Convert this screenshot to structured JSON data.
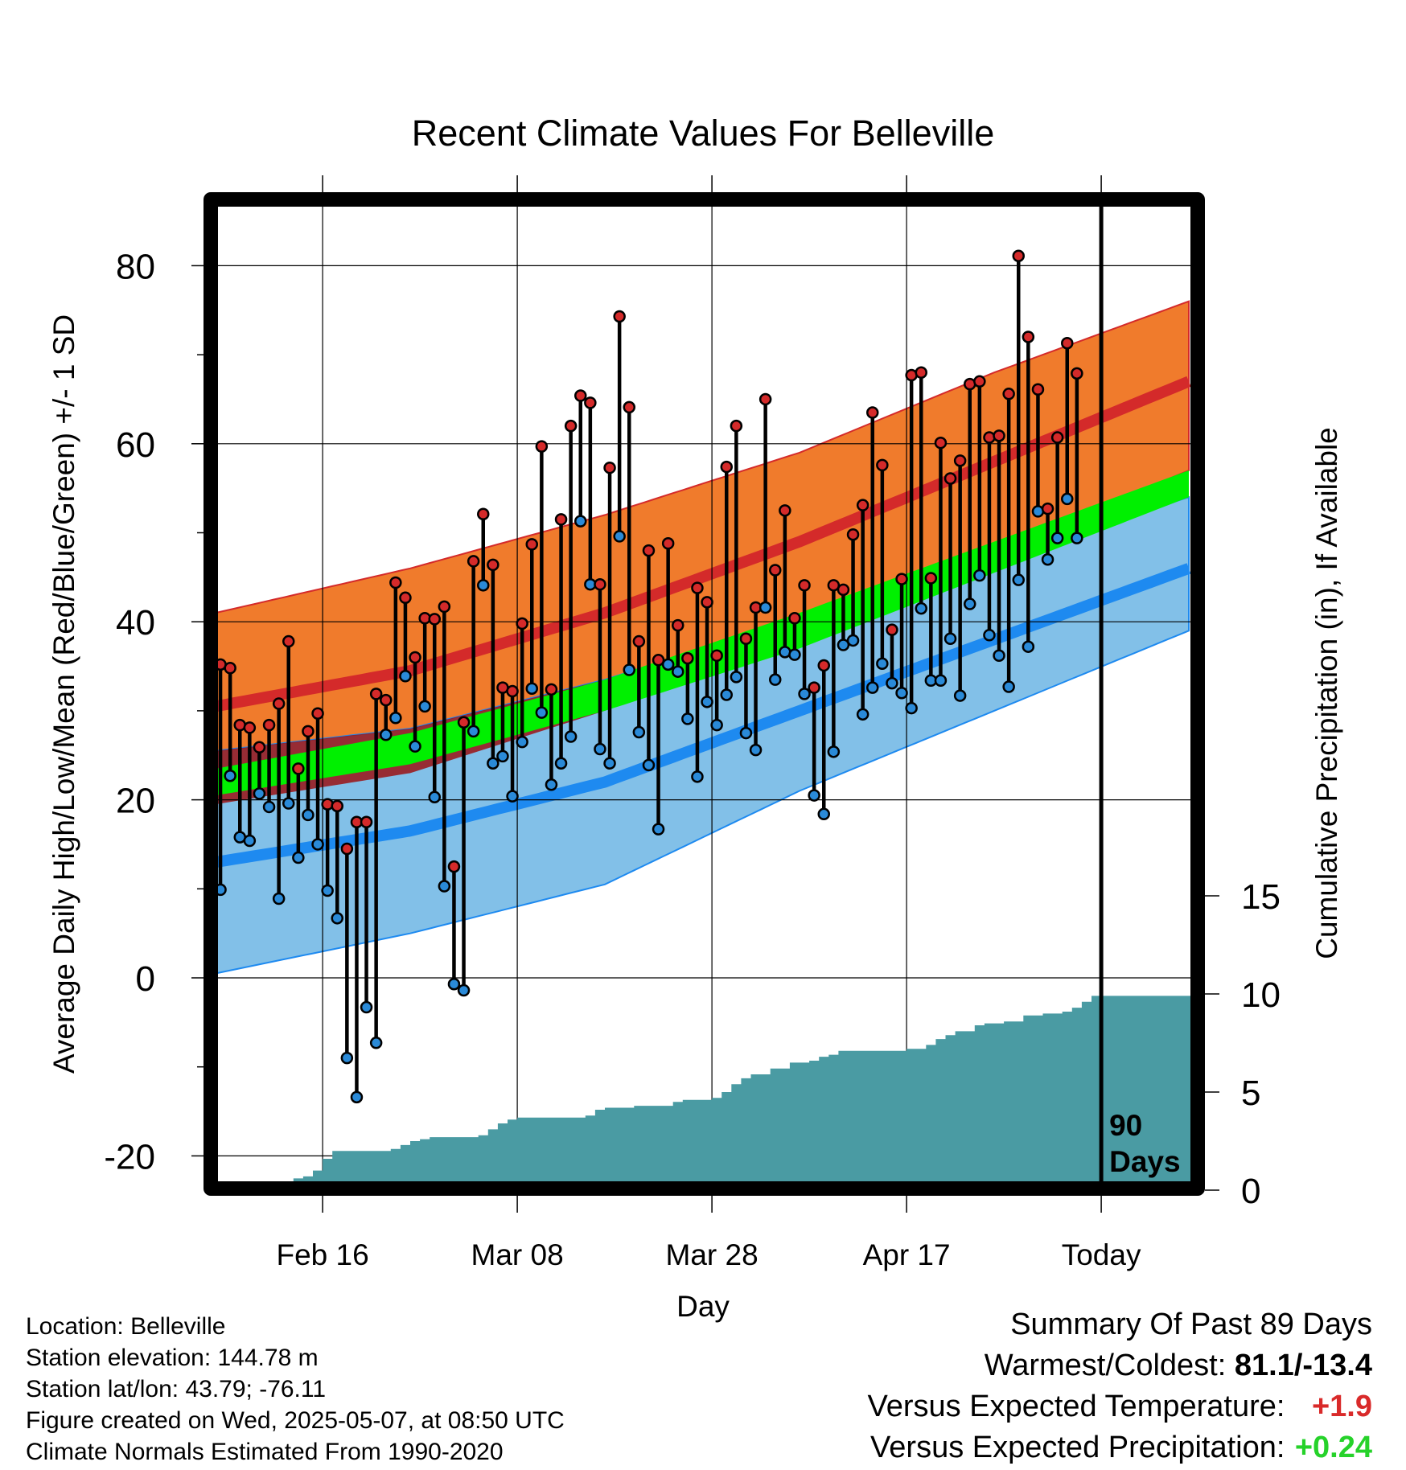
{
  "chart_data": {
    "type": "line",
    "title": "Recent Climate Values For Belleville",
    "xlabel": "Day",
    "ylabel_left": "Average Daily High/Low/Mean (Red/Blue/Green) +/- 1 SD",
    "ylabel_right": "Cumulative Precipitation (in), If Available",
    "ylim": [
      -22,
      88
    ],
    "y_ticks": [
      -20,
      0,
      20,
      40,
      60,
      80
    ],
    "precip_ylim": [
      0,
      30
    ],
    "precip_ticks": [
      0,
      5,
      10,
      15
    ],
    "x_range_days": [
      0,
      100
    ],
    "x_ticks": [
      {
        "day": 11,
        "label": "Feb 16"
      },
      {
        "day": 31,
        "label": "Mar 08"
      },
      {
        "day": 51,
        "label": "Mar 28"
      },
      {
        "day": 71,
        "label": "Apr 17"
      },
      {
        "day": 91,
        "label": "Today"
      }
    ],
    "today_day": 91,
    "today_annotation": [
      "90",
      "Days"
    ],
    "grid": true,
    "colors": {
      "high_band": "#f07b2c",
      "high_mean": "#d42a2a",
      "low_band": "#82c0e8",
      "low_mean": "#1e8af0",
      "mean_band": "#00f000",
      "overlap": "#9b1214",
      "precip": "#4a9ba3",
      "high_point": "#d42a2a",
      "low_point": "#2a8ad8"
    },
    "normals": {
      "days": [
        0,
        20,
        40,
        60,
        80,
        100
      ],
      "high_mean": [
        30.5,
        34.5,
        41,
        49,
        58,
        67
      ],
      "high_sd_upper": [
        41,
        46,
        52,
        59,
        68,
        76
      ],
      "high_sd_lower": [
        19.5,
        23,
        30,
        38.5,
        48,
        57
      ],
      "low_mean": [
        13,
        16.5,
        22,
        30,
        38,
        46
      ],
      "low_sd_upper": [
        25.5,
        28,
        33.5,
        40.5,
        47,
        54
      ],
      "low_sd_lower": [
        0.5,
        5,
        10.5,
        21,
        30,
        39
      ],
      "avg_upper": [
        23.5,
        27.5,
        33.5,
        41,
        49,
        57
      ],
      "avg_lower": [
        20.5,
        24,
        30,
        37,
        45.5,
        54
      ]
    },
    "series": [
      {
        "name": "High",
        "values": [
          35.2,
          34.8,
          28.4,
          28.1,
          25.9,
          28.4,
          30.8,
          37.8,
          23.5,
          27.7,
          29.7,
          19.5,
          19.3,
          14.5,
          17.5,
          17.5,
          31.9,
          31.2,
          44.4,
          42.7,
          36.0,
          40.4,
          40.3,
          41.7,
          12.5,
          28.7,
          46.8,
          52.1,
          46.4,
          32.6,
          32.2,
          39.8,
          48.7,
          59.7,
          32.4,
          51.5,
          62.0,
          65.4,
          64.6,
          44.2,
          57.3,
          74.3,
          64.1,
          37.8,
          48.0,
          35.7,
          48.8,
          39.6,
          35.9,
          43.8,
          42.2,
          36.2,
          57.4,
          62.0,
          38.1,
          41.6,
          65.0,
          45.8,
          52.5,
          40.4,
          44.1,
          32.6,
          35.1,
          44.1,
          43.6,
          49.8,
          53.1,
          63.5,
          57.6,
          39.1,
          44.8,
          67.7,
          68.0,
          44.9,
          60.1,
          56.1,
          58.1,
          66.7,
          67.0,
          60.7,
          60.9,
          65.6,
          81.1,
          72.0,
          66.1,
          52.7,
          60.7,
          71.3,
          67.9
        ]
      },
      {
        "name": "Low",
        "values": [
          9.9,
          22.7,
          15.8,
          15.4,
          20.7,
          19.2,
          8.9,
          19.6,
          13.5,
          18.3,
          15.0,
          9.8,
          6.7,
          -9.0,
          -13.4,
          -3.3,
          -7.3,
          27.3,
          29.2,
          33.9,
          26.0,
          30.5,
          20.3,
          10.3,
          -0.7,
          -1.4,
          27.7,
          44.1,
          24.1,
          24.9,
          20.4,
          26.5,
          32.5,
          29.8,
          21.7,
          24.1,
          27.1,
          51.3,
          44.2,
          25.7,
          24.1,
          49.6,
          34.6,
          27.6,
          23.9,
          16.7,
          35.2,
          34.4,
          29.1,
          22.6,
          31.0,
          28.4,
          31.8,
          33.8,
          27.5,
          25.6,
          41.6,
          33.5,
          36.6,
          36.3,
          31.9,
          20.5,
          18.4,
          25.4,
          37.4,
          37.9,
          29.6,
          32.6,
          35.3,
          33.1,
          32.0,
          30.3,
          41.5,
          33.4,
          33.4,
          38.1,
          31.7,
          42.0,
          45.2,
          38.5,
          36.2,
          32.7,
          44.7,
          37.2,
          52.4,
          47.0,
          49.4,
          53.8,
          49.4
        ]
      },
      {
        "name": "Cumulative Precipitation",
        "values": [
          0,
          0,
          0,
          0,
          0,
          0,
          0,
          0.3,
          0.6,
          0.7,
          1.0,
          1.6,
          2.0,
          2.0,
          2.0,
          2.0,
          2.0,
          2.0,
          2.1,
          2.3,
          2.5,
          2.6,
          2.7,
          2.7,
          2.7,
          2.7,
          2.7,
          2.8,
          3.1,
          3.4,
          3.6,
          3.7,
          3.7,
          3.7,
          3.7,
          3.7,
          3.7,
          3.7,
          3.8,
          4.1,
          4.2,
          4.2,
          4.2,
          4.3,
          4.3,
          4.3,
          4.3,
          4.5,
          4.6,
          4.6,
          4.6,
          4.7,
          5.0,
          5.4,
          5.7,
          5.9,
          5.9,
          6.2,
          6.2,
          6.5,
          6.5,
          6.6,
          6.8,
          6.9,
          7.1,
          7.1,
          7.1,
          7.1,
          7.1,
          7.1,
          7.1,
          7.2,
          7.2,
          7.4,
          7.7,
          7.9,
          8.1,
          8.1,
          8.4,
          8.5,
          8.5,
          8.6,
          8.6,
          8.9,
          8.9,
          9.0,
          9.0,
          9.1,
          9.3,
          9.6,
          9.9,
          9.9
        ]
      }
    ]
  },
  "info": {
    "location": "Location: Belleville",
    "elevation": "Station elevation: 144.78 m",
    "latlon": "Station lat/lon: 43.79; -76.11",
    "created": "Figure created on Wed, 2025-05-07, at 08:50 UTC",
    "normals": "Climate Normals Estimated From 1990-2020"
  },
  "summary": {
    "title": "Summary Of Past 89 Days",
    "warmest_label": "Warmest/Coldest:",
    "warmest_value": "81.1/-13.4",
    "temp_label": "Versus Expected Temperature:",
    "temp_value": "+1.9",
    "precip_label": "Versus Expected Precipitation:",
    "precip_value": "+0.24"
  }
}
